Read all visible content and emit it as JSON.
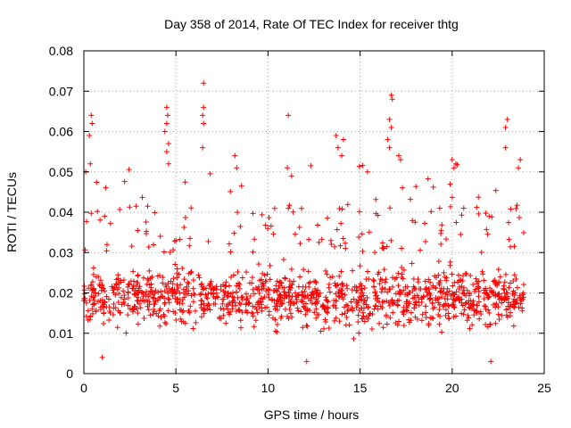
{
  "chart_data": {
    "type": "scatter",
    "title": "Day 358 of 2014, Rate Of TEC Index for receiver thtg",
    "xlabel": "GPS time / hours",
    "ylabel": "ROTI / TECUs",
    "xlim": [
      0,
      25
    ],
    "ylim": [
      0,
      0.08
    ],
    "x_ticks": [
      0,
      5,
      10,
      15,
      20,
      25
    ],
    "x_tick_labels": [
      "0",
      "5",
      "10",
      "15",
      "20",
      "25"
    ],
    "y_ticks": [
      0,
      0.01,
      0.02,
      0.03,
      0.04,
      0.05,
      0.06,
      0.07,
      0.08
    ],
    "y_tick_labels": [
      "0",
      "0.01",
      "0.02",
      "0.03",
      "0.04",
      "0.05",
      "0.06",
      "0.07",
      "0.08"
    ],
    "grid": true,
    "marker": "+",
    "color": "#ff0000",
    "x_range_of_data": [
      0.0,
      23.9
    ],
    "typical_band": [
      0.008,
      0.03
    ],
    "series": [
      {
        "name": "ROTI",
        "notable_points": [
          {
            "x": 0.4,
            "y": 0.064
          },
          {
            "x": 0.45,
            "y": 0.062
          },
          {
            "x": 0.3,
            "y": 0.059
          },
          {
            "x": 0.35,
            "y": 0.052
          },
          {
            "x": 0.1,
            "y": 0.05
          },
          {
            "x": 4.5,
            "y": 0.066
          },
          {
            "x": 4.55,
            "y": 0.064
          },
          {
            "x": 4.5,
            "y": 0.062
          },
          {
            "x": 4.6,
            "y": 0.057
          },
          {
            "x": 4.4,
            "y": 0.06
          },
          {
            "x": 4.5,
            "y": 0.055
          },
          {
            "x": 4.6,
            "y": 0.052
          },
          {
            "x": 6.5,
            "y": 0.072
          },
          {
            "x": 6.5,
            "y": 0.066
          },
          {
            "x": 6.45,
            "y": 0.064
          },
          {
            "x": 6.5,
            "y": 0.062
          },
          {
            "x": 6.45,
            "y": 0.056
          },
          {
            "x": 8.2,
            "y": 0.054
          },
          {
            "x": 8.3,
            "y": 0.051
          },
          {
            "x": 11.1,
            "y": 0.064
          },
          {
            "x": 11.05,
            "y": 0.051
          },
          {
            "x": 13.7,
            "y": 0.059
          },
          {
            "x": 14.1,
            "y": 0.058
          },
          {
            "x": 13.8,
            "y": 0.056
          },
          {
            "x": 14.0,
            "y": 0.054
          },
          {
            "x": 15.4,
            "y": 0.05
          },
          {
            "x": 16.7,
            "y": 0.069
          },
          {
            "x": 16.75,
            "y": 0.068
          },
          {
            "x": 16.6,
            "y": 0.063
          },
          {
            "x": 16.7,
            "y": 0.061
          },
          {
            "x": 16.5,
            "y": 0.058
          },
          {
            "x": 16.6,
            "y": 0.056
          },
          {
            "x": 17.1,
            "y": 0.054
          },
          {
            "x": 17.2,
            "y": 0.053
          },
          {
            "x": 20.0,
            "y": 0.053
          },
          {
            "x": 20.2,
            "y": 0.052
          },
          {
            "x": 20.1,
            "y": 0.051
          },
          {
            "x": 23.0,
            "y": 0.063
          },
          {
            "x": 22.9,
            "y": 0.061
          },
          {
            "x": 22.9,
            "y": 0.056
          },
          {
            "x": 23.7,
            "y": 0.053
          },
          {
            "x": 23.6,
            "y": 0.051
          },
          {
            "x": 12.1,
            "y": 0.003
          },
          {
            "x": 22.1,
            "y": 0.003
          },
          {
            "x": 1.0,
            "y": 0.004
          }
        ]
      }
    ]
  }
}
